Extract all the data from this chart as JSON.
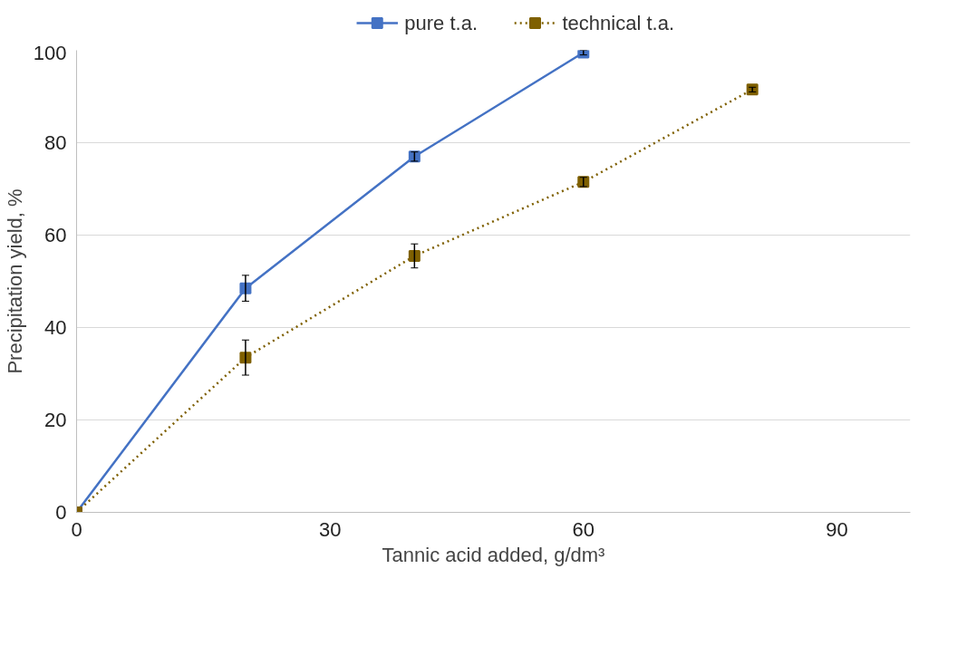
{
  "chart_data": {
    "type": "line",
    "xlabel": "Tannic acid added, g/dm³",
    "ylabel": "Precipitation yield, %",
    "xlim": [
      0,
      98.7
    ],
    "xticks": [
      0,
      30,
      60,
      90
    ],
    "ylim": [
      0,
      100
    ],
    "yticks": [
      0,
      20,
      40,
      60,
      80,
      100
    ],
    "grid": "y",
    "legend": "top",
    "marker": "square",
    "series": [
      {
        "name": "pure t.a.",
        "color": "#4472c4",
        "line_style": "solid",
        "x": [
          0,
          20,
          40,
          60
        ],
        "values": [
          0,
          48.5,
          77,
          99.5
        ],
        "errors": [
          null,
          2.8,
          1,
          0.5
        ]
      },
      {
        "name": "technical t.a.",
        "color": "#7f6000",
        "line_style": "dotted",
        "x": [
          0,
          20,
          40,
          60,
          80
        ],
        "values": [
          0,
          33.5,
          55.5,
          71.5,
          91.5
        ],
        "errors": [
          null,
          3.8,
          2.6,
          1,
          0.5
        ]
      }
    ]
  }
}
